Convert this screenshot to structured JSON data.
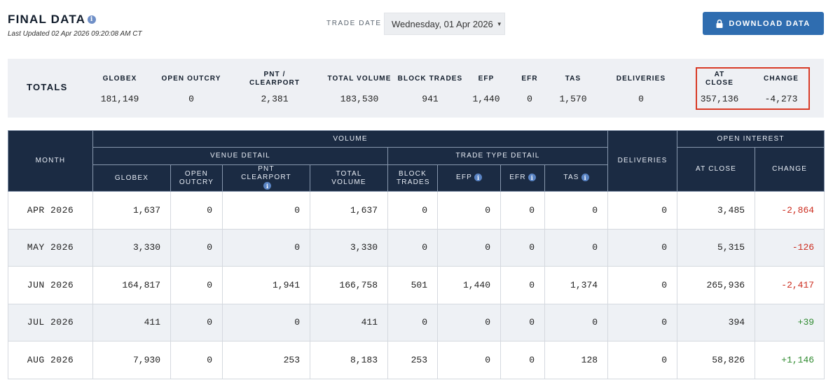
{
  "header": {
    "title": "FINAL DATA",
    "info_icon": "i",
    "last_updated": "Last Updated  02 Apr 2026 09:20:08 AM CT",
    "trade_date_label": "TRADE DATE",
    "trade_date_value": "Wednesday, 01 Apr 2026",
    "download_label": "DOWNLOAD DATA"
  },
  "totals": {
    "label": "TOTALS",
    "columns": [
      {
        "header": "GLOBEX",
        "value": "181,149"
      },
      {
        "header": "OPEN OUTCRY",
        "value": "0"
      },
      {
        "header": "PNT / CLEARPORT",
        "value": "2,381"
      },
      {
        "header": "TOTAL VOLUME",
        "value": "183,530"
      },
      {
        "header": "BLOCK TRADES",
        "value": "941"
      },
      {
        "header": "EFP",
        "value": "1,440"
      },
      {
        "header": "EFR",
        "value": "0"
      },
      {
        "header": "TAS",
        "value": "1,570"
      },
      {
        "header": "DELIVERIES",
        "value": "0"
      },
      {
        "header": "AT CLOSE",
        "value": "357,136"
      },
      {
        "header": "CHANGE",
        "value": "-4,273"
      }
    ]
  },
  "table": {
    "headers": {
      "month": "MONTH",
      "volume": "VOLUME",
      "venue_detail": "VENUE DETAIL",
      "trade_type_detail": "TRADE TYPE DETAIL",
      "deliveries": "DELIVERIES",
      "open_interest": "OPEN INTEREST",
      "globex": "GLOBEX",
      "open_outcry": "OPEN OUTCRY",
      "pnt_clearport": "PNT CLEARPORT",
      "total_volume": "TOTAL VOLUME",
      "block_trades": "BLOCK TRADES",
      "efp": "EFP",
      "efr": "EFR",
      "tas": "TAS",
      "at_close": "AT CLOSE",
      "change": "CHANGE"
    },
    "rows": [
      {
        "month": "APR 2026",
        "globex": "1,637",
        "open_outcry": "0",
        "pnt": "0",
        "total": "1,637",
        "block": "0",
        "efp": "0",
        "efr": "0",
        "tas": "0",
        "deliveries": "0",
        "at_close": "3,485",
        "change": "-2,864",
        "change_dir": "neg"
      },
      {
        "month": "MAY 2026",
        "globex": "3,330",
        "open_outcry": "0",
        "pnt": "0",
        "total": "3,330",
        "block": "0",
        "efp": "0",
        "efr": "0",
        "tas": "0",
        "deliveries": "0",
        "at_close": "5,315",
        "change": "-126",
        "change_dir": "neg"
      },
      {
        "month": "JUN 2026",
        "globex": "164,817",
        "open_outcry": "0",
        "pnt": "1,941",
        "total": "166,758",
        "block": "501",
        "efp": "1,440",
        "efr": "0",
        "tas": "1,374",
        "deliveries": "0",
        "at_close": "265,936",
        "change": "-2,417",
        "change_dir": "neg"
      },
      {
        "month": "JUL 2026",
        "globex": "411",
        "open_outcry": "0",
        "pnt": "0",
        "total": "411",
        "block": "0",
        "efp": "0",
        "efr": "0",
        "tas": "0",
        "deliveries": "0",
        "at_close": "394",
        "change": "+39",
        "change_dir": "pos"
      },
      {
        "month": "AUG 2026",
        "globex": "7,930",
        "open_outcry": "0",
        "pnt": "253",
        "total": "8,183",
        "block": "253",
        "efp": "0",
        "efr": "0",
        "tas": "128",
        "deliveries": "0",
        "at_close": "58,826",
        "change": "+1,146",
        "change_dir": "pos"
      }
    ]
  },
  "colors": {
    "negative": "#cc2b1d",
    "positive": "#2f8a2f",
    "header_bg": "#1b2b43",
    "button": "#2f6db0",
    "highlight": "#d83a26"
  }
}
